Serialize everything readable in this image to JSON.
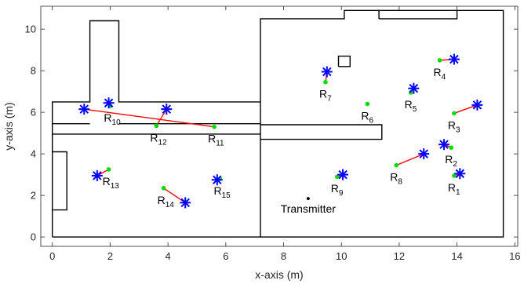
{
  "chart_data": {
    "type": "scatter",
    "xlabel": "x-axis (m)",
    "ylabel": "y-axis (m)",
    "xlim": [
      -0.4,
      16.1
    ],
    "ylim": [
      -0.45,
      11.1
    ],
    "xticks": [
      0,
      2,
      4,
      6,
      8,
      10,
      12,
      14,
      16
    ],
    "yticks": [
      0,
      2,
      4,
      6,
      8,
      10
    ],
    "grid": false,
    "colors": {
      "walls": "#000000",
      "link": "#ff0000",
      "estimated": "#00dd00",
      "true_position": "#0000ff",
      "transmitter": "#000000"
    },
    "walls": [
      [
        [
          0,
          0
        ],
        [
          15.6,
          0
        ],
        [
          15.6,
          10.9
        ],
        [
          11.3,
          10.9
        ],
        [
          11.3,
          10.5
        ]
      ],
      [
        [
          11.3,
          10.9
        ],
        [
          11.3,
          10.9
        ],
        [
          10.1,
          10.9
        ],
        [
          10.1,
          10.5
        ],
        [
          7.2,
          10.5
        ],
        [
          7.2,
          0
        ]
      ],
      [
        [
          11.3,
          10.5
        ],
        [
          14,
          10.5
        ],
        [
          14,
          10.9
        ]
      ],
      [
        [
          0,
          0
        ],
        [
          0,
          6.5
        ],
        [
          1.3,
          6.5
        ],
        [
          1.3,
          10.4
        ],
        [
          2.3,
          10.4
        ],
        [
          2.3,
          6.5
        ],
        [
          7.2,
          6.5
        ]
      ],
      [
        [
          0,
          4.95
        ],
        [
          7.2,
          4.95
        ]
      ],
      [
        [
          0,
          5.45
        ],
        [
          1.3,
          5.45
        ]
      ],
      [
        [
          2.3,
          5.45
        ],
        [
          7.2,
          5.45
        ]
      ],
      [
        [
          7.2,
          4.7
        ],
        [
          11.4,
          4.7
        ],
        [
          11.4,
          5.4
        ],
        [
          7.2,
          5.4
        ]
      ],
      [
        [
          0,
          1.3
        ],
        [
          0.5,
          1.3
        ],
        [
          0.5,
          4.1
        ],
        [
          0,
          4.1
        ]
      ],
      [
        [
          9.9,
          8.2
        ],
        [
          10.3,
          8.2
        ],
        [
          10.3,
          8.7
        ],
        [
          9.9,
          8.7
        ],
        [
          9.9,
          8.2
        ]
      ]
    ],
    "transmitter": {
      "label": "Transmitter",
      "x": 8.85,
      "y": 1.85
    },
    "points": [
      {
        "label": "R",
        "sub": "1",
        "est": [
          13.9,
          2.95
        ],
        "true": [
          14.1,
          3.05
        ]
      },
      {
        "label": "R",
        "sub": "2",
        "est": [
          13.8,
          4.3
        ],
        "true": [
          13.55,
          4.45
        ]
      },
      {
        "label": "R",
        "sub": "3",
        "est": [
          13.9,
          5.95
        ],
        "true": [
          14.7,
          6.35
        ]
      },
      {
        "label": "R",
        "sub": "4",
        "est": [
          13.4,
          8.5
        ],
        "true": [
          13.9,
          8.55
        ]
      },
      {
        "label": "R",
        "sub": "5",
        "est": [
          12.4,
          6.95
        ],
        "true": [
          12.5,
          7.15
        ]
      },
      {
        "label": "R",
        "sub": "6",
        "est": [
          10.9,
          6.4
        ],
        "true": null
      },
      {
        "label": "R",
        "sub": "7",
        "est": [
          9.45,
          7.45
        ],
        "true": [
          9.5,
          7.95
        ]
      },
      {
        "label": "R",
        "sub": "8",
        "est": [
          11.9,
          3.45
        ],
        "true": [
          12.85,
          4
        ]
      },
      {
        "label": "R",
        "sub": "9",
        "est": [
          9.85,
          2.9
        ],
        "true": [
          10.05,
          3
        ]
      },
      {
        "label": "R",
        "sub": "10",
        "est": [
          2.0,
          6.3
        ],
        "true": [
          1.95,
          6.45
        ]
      },
      {
        "label": "R",
        "sub": "11",
        "est": [
          5.6,
          5.3
        ],
        "true": [
          1.1,
          6.15
        ]
      },
      {
        "label": "R",
        "sub": "12",
        "est": [
          3.6,
          5.35
        ],
        "true": [
          3.95,
          6.15
        ]
      },
      {
        "label": "R",
        "sub": "13",
        "est": [
          1.95,
          3.25
        ],
        "true": [
          1.55,
          2.95
        ]
      },
      {
        "label": "R",
        "sub": "14",
        "est": [
          3.85,
          2.35
        ],
        "true": [
          4.6,
          1.65
        ]
      },
      {
        "label": "R",
        "sub": "15",
        "est": [
          5.8,
          2.8
        ],
        "true": [
          5.7,
          2.75
        ]
      }
    ]
  }
}
